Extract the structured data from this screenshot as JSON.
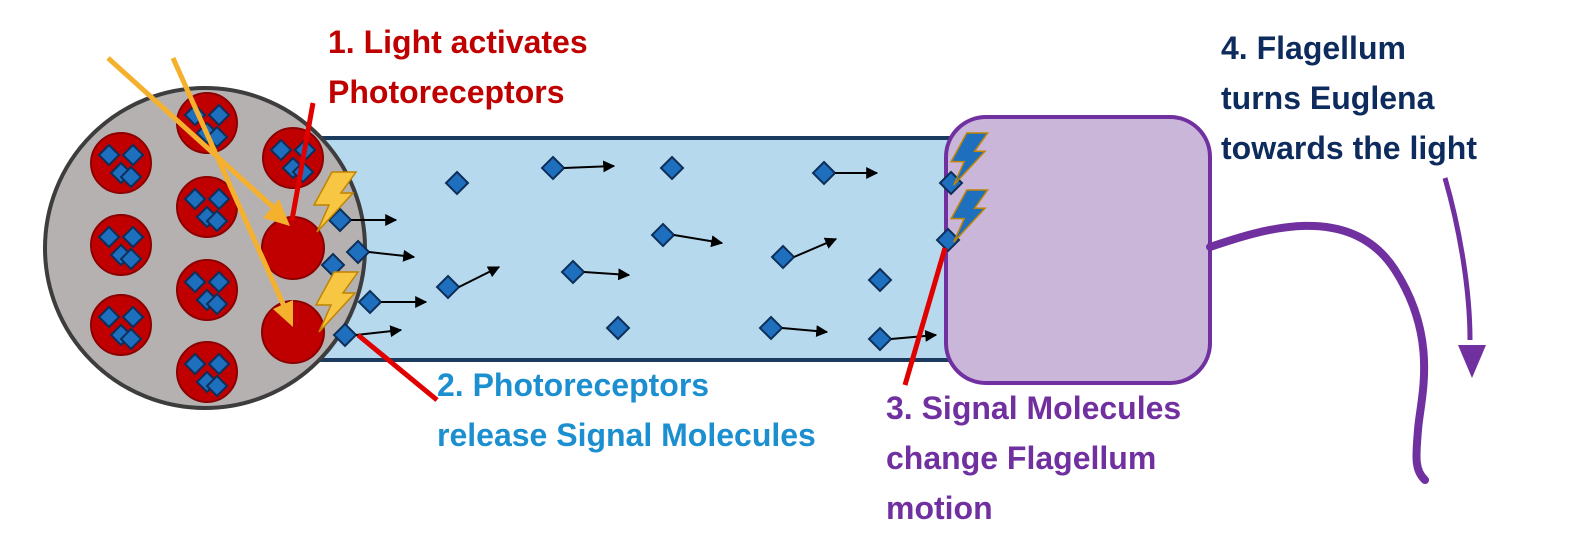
{
  "colors": {
    "red": "#c00000",
    "dark_red": "#8b0000",
    "light_orange": "#f5b12e",
    "light_yellow": "#f7c744",
    "blue_diamond": "#1f6fbf",
    "diamond_stroke": "#0d2f59",
    "tube_fill": "#b6d9ee",
    "tube_stroke": "#1c3a5e",
    "cell_fill": "#b5b1b1",
    "cell_stroke": "#3d3d3d",
    "flagellum_purple": "#7030a0",
    "flagellum_box_fill": "#c9b6d9",
    "step1_color": "#c00000",
    "step2_color": "#1b8fcf",
    "step3_color": "#7030a0",
    "step4_color": "#0d2b5c"
  },
  "labels": {
    "step1": {
      "lines": [
        "1. Light activates",
        "Photoreceptors"
      ]
    },
    "step2": {
      "lines": [
        "2. Photoreceptors",
        "release Signal Molecules"
      ]
    },
    "step3": {
      "lines": [
        "3. Signal Molecules",
        "change Flagellum",
        "motion"
      ]
    },
    "step4": {
      "lines": [
        "4. Flagellum",
        "turns Euglena",
        "towards the light"
      ]
    }
  }
}
